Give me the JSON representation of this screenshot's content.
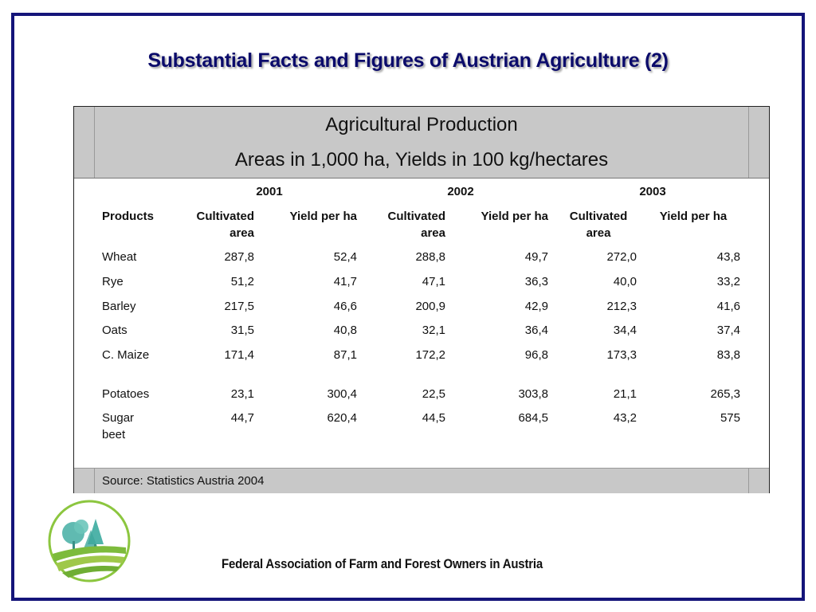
{
  "slide": {
    "title": "Substantial Facts and Figures of Austrian Agriculture (2)",
    "footer_org": "Federal Association of Farm and Forest Owners in Austria",
    "colors": {
      "frame": "#15157a",
      "title": "#0b0b6b",
      "header_bg": "#c8c8c8"
    },
    "logo_icon": "farm-forest-logo-icon"
  },
  "table": {
    "heading": "Agricultural Production",
    "subheading": "Areas in 1,000 ha, Yields in 100 kg/hectares",
    "years": [
      "2001",
      "2002",
      "2003"
    ],
    "columns": {
      "products": "Products",
      "c2001_area": "Cultivated area",
      "c2001_yield": "Yield per ha",
      "c2002_area": "Cultivated area",
      "c2002_yield": "Yield per ha",
      "c2003_area": "Cultivated area",
      "c2003_yield": "Yield per ha"
    },
    "rows": [
      {
        "product": "Wheat",
        "values": [
          "287,8",
          "52,4",
          "288,8",
          "49,7",
          "272,0",
          "43,8"
        ]
      },
      {
        "product": "Rye",
        "values": [
          "51,2",
          "41,7",
          "47,1",
          "36,3",
          "40,0",
          "33,2"
        ]
      },
      {
        "product": "Barley",
        "values": [
          "217,5",
          "46,6",
          "200,9",
          "42,9",
          "212,3",
          "41,6"
        ]
      },
      {
        "product": "Oats",
        "values": [
          "31,5",
          "40,8",
          "32,1",
          "36,4",
          "34,4",
          "37,4"
        ]
      },
      {
        "product": "C. Maize",
        "values": [
          "171,4",
          "87,1",
          "172,2",
          "96,8",
          "173,3",
          "83,8"
        ]
      },
      {
        "product": "Potatoes",
        "values": [
          "23,1",
          "300,4",
          "22,5",
          "303,8",
          "21,1",
          "265,3"
        ]
      },
      {
        "product": "Sugar beet",
        "values": [
          "44,7",
          "620,4",
          "44,5",
          "684,5",
          "43,2",
          "575"
        ]
      }
    ],
    "source": "Source: Statistics Austria 2004"
  }
}
